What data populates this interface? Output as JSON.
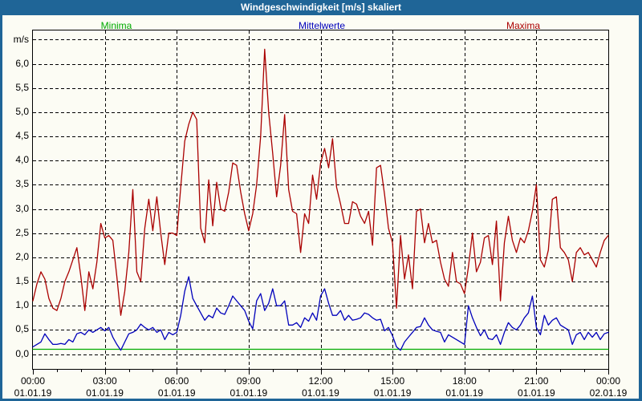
{
  "window": {
    "title": "Windgeschwindigkeit [m/s] skaliert"
  },
  "legend": [
    {
      "label": "Minima",
      "color": "#00aa00"
    },
    {
      "label": "Mittelwerte",
      "color": "#0000bb"
    },
    {
      "label": "Maxima",
      "color": "#aa0000"
    }
  ],
  "colors": {
    "titlebar": "#1f6597",
    "frame": "#1f6597",
    "background": "#fcfcf4",
    "grid": "#000000"
  },
  "chart_data": {
    "type": "line",
    "title": "Windgeschwindigkeit [m/s] skaliert",
    "xlabel": "",
    "ylabel": "m/s",
    "ylim": [
      -0.32,
      6.64
    ],
    "grid": "dashed, horizontal every 0.5 m/s, vertical every 3 h",
    "legend_position": "top",
    "extra_gridline_value": 6.5,
    "yticks": [
      {
        "value": 0.0,
        "label": "0,0"
      },
      {
        "value": 0.5,
        "label": "0,5"
      },
      {
        "value": 1.0,
        "label": "1,0"
      },
      {
        "value": 1.5,
        "label": "1,5"
      },
      {
        "value": 2.0,
        "label": "2,0"
      },
      {
        "value": 2.5,
        "label": "2,5"
      },
      {
        "value": 3.0,
        "label": "3,0"
      },
      {
        "value": 3.5,
        "label": "3,5"
      },
      {
        "value": 4.0,
        "label": "4,0"
      },
      {
        "value": 4.5,
        "label": "4,5"
      },
      {
        "value": 5.0,
        "label": "5,0"
      },
      {
        "value": 5.5,
        "label": "5,5"
      },
      {
        "value": 6.0,
        "label": "6,0"
      }
    ],
    "xticks": [
      {
        "hour": 0,
        "time": "00:00",
        "date": "01.01.19"
      },
      {
        "hour": 3,
        "time": "03:00",
        "date": "01.01.19"
      },
      {
        "hour": 6,
        "time": "06:00",
        "date": "01.01.19"
      },
      {
        "hour": 9,
        "time": "09:00",
        "date": "01.01.19"
      },
      {
        "hour": 12,
        "time": "12:00",
        "date": "01.01.19"
      },
      {
        "hour": 15,
        "time": "15:00",
        "date": "01.01.19"
      },
      {
        "hour": 18,
        "time": "18:00",
        "date": "01.01.19"
      },
      {
        "hour": 21,
        "time": "21:00",
        "date": "01.01.19"
      },
      {
        "hour": 24,
        "time": "00:00",
        "date": "02.01.19"
      }
    ],
    "minor_xtick_every_hours": 1,
    "x_total_minutes": 1440,
    "sample_interval_minutes": 10,
    "series": [
      {
        "name": "Minima",
        "color": "#00aa00",
        "constant_value": 0.1
      },
      {
        "name": "Mittelwerte",
        "color": "#0000bb",
        "values": [
          0.15,
          0.2,
          0.25,
          0.42,
          0.3,
          0.2,
          0.2,
          0.22,
          0.2,
          0.3,
          0.25,
          0.42,
          0.45,
          0.4,
          0.5,
          0.45,
          0.5,
          0.55,
          0.48,
          0.55,
          0.35,
          0.2,
          0.08,
          0.25,
          0.42,
          0.45,
          0.5,
          0.62,
          0.55,
          0.5,
          0.55,
          0.45,
          0.5,
          0.3,
          0.45,
          0.4,
          0.45,
          0.8,
          1.3,
          1.6,
          1.15,
          1.0,
          0.85,
          0.7,
          0.8,
          0.75,
          0.95,
          0.85,
          0.82,
          1.0,
          1.2,
          1.1,
          1.0,
          0.9,
          0.68,
          0.52,
          1.1,
          1.25,
          0.9,
          1.05,
          1.35,
          1.0,
          1.0,
          1.1,
          0.6,
          0.6,
          0.65,
          0.55,
          0.75,
          0.68,
          0.85,
          0.7,
          1.2,
          1.35,
          1.05,
          0.8,
          0.8,
          0.9,
          0.7,
          0.8,
          0.7,
          0.72,
          0.75,
          0.85,
          0.82,
          0.75,
          0.7,
          0.72,
          0.48,
          0.55,
          0.38,
          0.15,
          0.08,
          0.25,
          0.35,
          0.45,
          0.55,
          0.57,
          0.75,
          0.6,
          0.5,
          0.47,
          0.45,
          0.25,
          0.4,
          0.35,
          0.3,
          0.25,
          0.2,
          1.0,
          0.75,
          0.55,
          0.38,
          0.5,
          0.32,
          0.3,
          0.4,
          0.2,
          0.45,
          0.65,
          0.55,
          0.5,
          0.6,
          0.75,
          0.85,
          1.2,
          0.55,
          0.4,
          0.8,
          0.6,
          0.7,
          0.75,
          0.6,
          0.55,
          0.5,
          0.2,
          0.4,
          0.45,
          0.3,
          0.45,
          0.35,
          0.45,
          0.3,
          0.42,
          0.45
        ]
      },
      {
        "name": "Maxima",
        "color": "#aa0000",
        "values": [
          1.1,
          1.45,
          1.7,
          1.55,
          1.15,
          0.95,
          0.9,
          1.15,
          1.5,
          1.7,
          1.95,
          2.2,
          1.6,
          0.9,
          1.7,
          1.35,
          1.9,
          2.7,
          2.4,
          2.45,
          2.35,
          1.6,
          0.8,
          1.3,
          2.1,
          3.4,
          1.7,
          1.5,
          2.6,
          3.2,
          2.55,
          3.25,
          2.5,
          1.85,
          2.5,
          2.5,
          2.45,
          3.45,
          4.4,
          4.75,
          5.0,
          4.85,
          2.6,
          2.3,
          3.6,
          2.65,
          3.55,
          3.0,
          2.95,
          3.35,
          3.95,
          3.9,
          3.35,
          2.9,
          2.55,
          2.9,
          3.5,
          4.5,
          6.3,
          5.0,
          4.15,
          3.25,
          3.9,
          4.95,
          3.4,
          2.95,
          2.9,
          2.1,
          2.9,
          2.7,
          3.7,
          3.2,
          3.95,
          4.25,
          3.85,
          4.45,
          3.45,
          3.1,
          2.7,
          2.7,
          3.15,
          3.1,
          2.85,
          2.7,
          2.95,
          2.25,
          3.85,
          3.9,
          3.3,
          2.6,
          2.3,
          0.95,
          2.45,
          1.55,
          2.05,
          1.35,
          2.95,
          3.0,
          2.3,
          2.7,
          2.3,
          2.35,
          1.9,
          1.55,
          1.4,
          2.1,
          1.5,
          1.45,
          1.25,
          1.8,
          2.5,
          1.7,
          1.9,
          2.4,
          2.45,
          1.85,
          2.75,
          1.1,
          2.3,
          2.85,
          2.35,
          2.1,
          2.4,
          2.3,
          2.55,
          2.95,
          3.5,
          1.95,
          1.8,
          2.15,
          3.2,
          3.25,
          2.2,
          2.1,
          1.95,
          1.5,
          2.1,
          2.2,
          2.05,
          2.1,
          1.95,
          1.8,
          2.1,
          2.35,
          2.45
        ]
      }
    ]
  }
}
